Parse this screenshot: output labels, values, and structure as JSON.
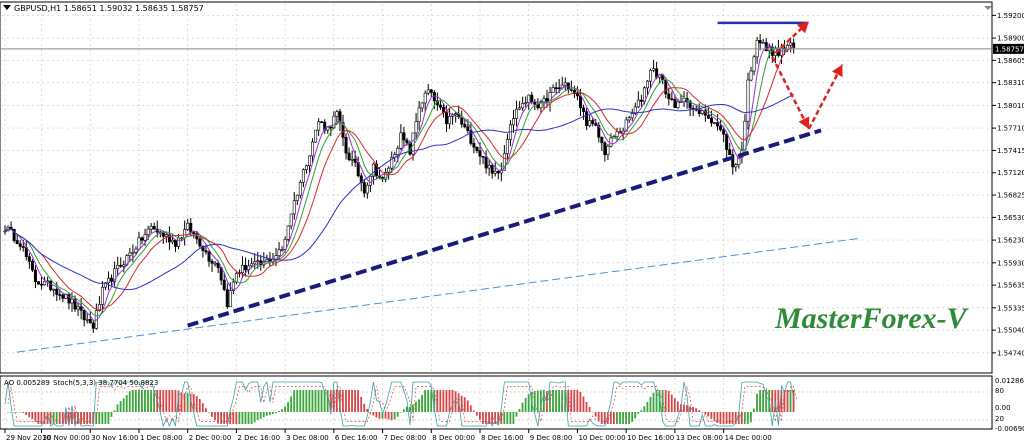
{
  "header": {
    "symbol_line": "GBPUSD,H1  1.58651 1.59032 1.58635 1.58757"
  },
  "indicator": {
    "label_ao": "AO 0.005289",
    "label_stoch": "Stoch(5,3,3) 38.7704 50.8823",
    "scale_labels": [
      "0.012867",
      "80",
      "0.00",
      "20",
      "-0.00690"
    ]
  },
  "watermark": "MasterForex-V",
  "colors": {
    "bull": "#000000",
    "bear": "#000000",
    "ma_purple": "#9b30d9",
    "ma_green": "#2fa52f",
    "ma_red": "#d42a2a",
    "ma_blue": "#3030c8",
    "trend_navy": "#1a1a7a",
    "channel_blue": "#4a90d9",
    "resistance": "#2233aa",
    "arrow_red": "#e02020",
    "brand_green": "#2e8b3a",
    "ao_green": "#37a637",
    "ao_red": "#d64545"
  },
  "chart_data": {
    "type": "candlestick",
    "symbol": "GBPUSD",
    "timeframe": "H1",
    "ohlc_last": {
      "open": 1.58651,
      "high": 1.59032,
      "low": 1.58635,
      "close": 1.58757
    },
    "price_axis": {
      "ylim": [
        1.545,
        1.5935
      ],
      "ticks": [
        1.592,
        1.589,
        1.58605,
        1.5831,
        1.5801,
        1.5771,
        1.57415,
        1.5712,
        1.56825,
        1.5653,
        1.5623,
        1.5593,
        1.55635,
        1.55335,
        1.5504,
        1.5474
      ],
      "tick_labels": [
        "1.59200",
        "1.58900",
        "1.58605",
        "1.58310",
        "1.58010",
        "1.57710",
        "1.57415",
        "1.57120",
        "1.56825",
        "1.56530",
        "1.56230",
        "1.55930",
        "1.55635",
        "1.55335",
        "1.55040",
        "1.54740"
      ],
      "current_price": 1.58757,
      "current_price_label": "1.58757"
    },
    "time_axis": {
      "labels": [
        "29 Nov 2010",
        "30 Nov 00:00",
        "30 Nov 16:00",
        "1 Dec 08:00",
        "2 Dec 00:00",
        "2 Dec 16:00",
        "3 Dec 08:00",
        "6 Dec 16:00",
        "7 Dec 08:00",
        "8 Dec 00:00",
        "8 Dec 16:00",
        "9 Dec 08:00",
        "10 Dec 00:00",
        "10 Dec 16:00",
        "13 Dec 08:00",
        "14 Dec 00:00"
      ],
      "label_bars": [
        0,
        12,
        28,
        44,
        60,
        76,
        92,
        108,
        124,
        140,
        156,
        172,
        188,
        204,
        220,
        236
      ]
    },
    "bar_count": 260,
    "close_path": [
      [
        0,
        1.564
      ],
      [
        5,
        1.562
      ],
      [
        10,
        1.557
      ],
      [
        16,
        1.556
      ],
      [
        22,
        1.554
      ],
      [
        26,
        1.552
      ],
      [
        29,
        1.551
      ],
      [
        32,
        1.5555
      ],
      [
        36,
        1.558
      ],
      [
        40,
        1.56
      ],
      [
        44,
        1.562
      ],
      [
        48,
        1.564
      ],
      [
        52,
        1.563
      ],
      [
        56,
        1.562
      ],
      [
        60,
        1.564
      ],
      [
        64,
        1.562
      ],
      [
        67,
        1.56
      ],
      [
        70,
        1.559
      ],
      [
        73,
        1.554
      ],
      [
        76,
        1.558
      ],
      [
        80,
        1.559
      ],
      [
        84,
        1.559
      ],
      [
        88,
        1.56
      ],
      [
        91,
        1.561
      ],
      [
        94,
        1.566
      ],
      [
        97,
        1.57
      ],
      [
        100,
        1.574
      ],
      [
        103,
        1.578
      ],
      [
        106,
        1.577
      ],
      [
        109,
        1.579
      ],
      [
        112,
        1.574
      ],
      [
        115,
        1.572
      ],
      [
        118,
        1.569
      ],
      [
        121,
        1.572
      ],
      [
        124,
        1.57
      ],
      [
        127,
        1.573
      ],
      [
        130,
        1.576
      ],
      [
        133,
        1.574
      ],
      [
        136,
        1.58
      ],
      [
        139,
        1.582
      ],
      [
        142,
        1.58
      ],
      [
        145,
        1.578
      ],
      [
        148,
        1.579
      ],
      [
        151,
        1.577
      ],
      [
        154,
        1.575
      ],
      [
        157,
        1.573
      ],
      [
        160,
        1.571
      ],
      [
        163,
        1.572
      ],
      [
        166,
        1.578
      ],
      [
        169,
        1.58
      ],
      [
        172,
        1.581
      ],
      [
        176,
        1.58
      ],
      [
        180,
        1.582
      ],
      [
        184,
        1.583
      ],
      [
        188,
        1.581
      ],
      [
        191,
        1.578
      ],
      [
        194,
        1.577
      ],
      [
        197,
        1.574
      ],
      [
        200,
        1.576
      ],
      [
        203,
        1.577
      ],
      [
        206,
        1.579
      ],
      [
        209,
        1.581
      ],
      [
        212,
        1.585
      ],
      [
        215,
        1.584
      ],
      [
        218,
        1.581
      ],
      [
        221,
        1.58
      ],
      [
        224,
        1.581
      ],
      [
        227,
        1.579
      ],
      [
        230,
        1.579
      ],
      [
        233,
        1.578
      ],
      [
        236,
        1.576
      ],
      [
        239,
        1.572
      ],
      [
        242,
        1.574
      ],
      [
        244,
        1.583
      ],
      [
        247,
        1.589
      ],
      [
        250,
        1.5875
      ],
      [
        254,
        1.587
      ],
      [
        257,
        1.588
      ],
      [
        259,
        1.5876
      ]
    ],
    "moving_averages": [
      {
        "color": "purple",
        "period": 5
      },
      {
        "color": "green",
        "period": 8
      },
      {
        "color": "red",
        "period": 13
      },
      {
        "color": "blue",
        "period": 34
      }
    ],
    "drawings": {
      "support_trendline": {
        "from": [
          60,
          1.551
        ],
        "to": [
          268,
          1.5768
        ],
        "style": "dashed-thick"
      },
      "channel_line": {
        "from": [
          4,
          1.5475
        ],
        "to": [
          280,
          1.5625
        ],
        "style": "dashed-thin"
      },
      "resistance_line": {
        "from": [
          234,
          1.591
        ],
        "to": [
          263,
          1.591
        ],
        "style": "solid"
      },
      "arrows": [
        {
          "from": [
            253,
            1.587
          ],
          "to": [
            264,
            1.5912
          ]
        },
        {
          "from": [
            252,
            1.5865
          ],
          "to": [
            264,
            1.577
          ]
        },
        {
          "from": [
            264,
            1.577
          ],
          "to": [
            275,
            1.5855
          ]
        }
      ]
    },
    "oscillator": {
      "ylim": [
        -0.0069,
        0.012867
      ],
      "levels": [
        80,
        20
      ],
      "stoch_range": [
        0,
        100
      ]
    }
  }
}
